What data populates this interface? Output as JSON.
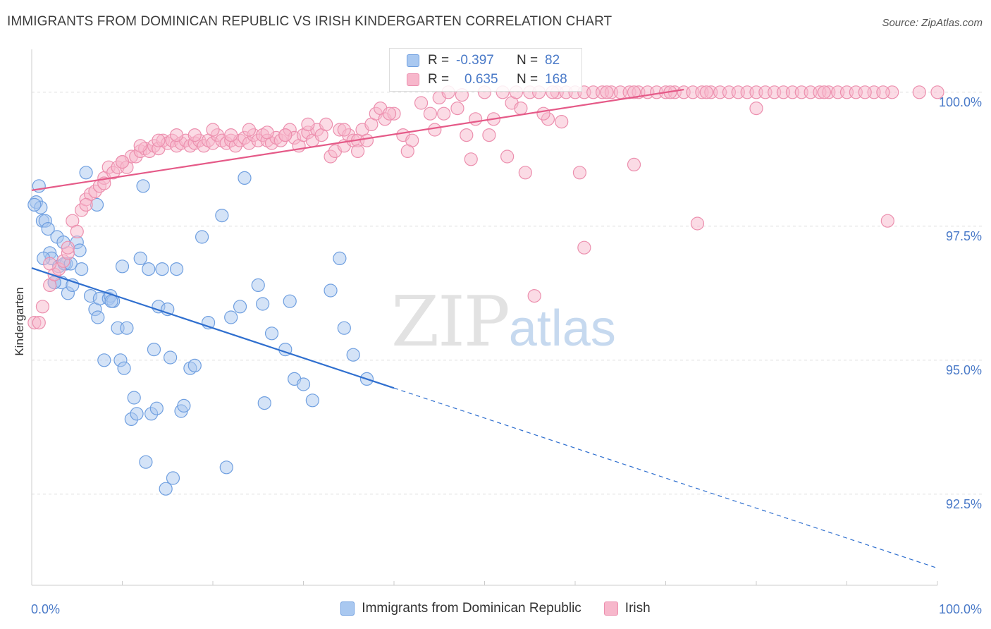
{
  "header": {
    "title": "IMMIGRANTS FROM DOMINICAN REPUBLIC VS IRISH KINDERGARTEN CORRELATION CHART",
    "source": "Source: ZipAtlas.com"
  },
  "watermark": {
    "zip": "ZIP",
    "atlas": "atlas"
  },
  "legend_top": {
    "rows": [
      {
        "r_label": "R =",
        "r_value": "-0.397",
        "n_label": "N =",
        "n_value": "82",
        "color": "#a9c8f0"
      },
      {
        "r_label": "R =",
        "r_value": "0.635",
        "n_label": "N =",
        "n_value": "168",
        "color": "#f7b7cb"
      }
    ]
  },
  "legend_bottom": {
    "items": [
      {
        "label": "Immigrants from Dominican Republic",
        "color": "#a9c8f0"
      },
      {
        "label": "Irish",
        "color": "#f7b7cb"
      }
    ]
  },
  "chart_data": {
    "type": "scatter",
    "title": "IMMIGRANTS FROM DOMINICAN REPUBLIC VS IRISH KINDERGARTEN CORRELATION CHART",
    "xlabel": "",
    "ylabel": "Kindergarten",
    "xlim": [
      0,
      100
    ],
    "ylim": [
      90.8,
      100.8
    ],
    "x_tick_labels": [
      "0.0%",
      "100.0%"
    ],
    "y_ticks": [
      92.5,
      95.0,
      97.5,
      100.0
    ],
    "y_tick_labels": [
      "92.5%",
      "95.0%",
      "97.5%",
      "100.0%"
    ],
    "grid": true,
    "legend_position": "top-center",
    "series": [
      {
        "name": "Immigrants from Dominican Republic",
        "color": "#a9c8f0",
        "stroke": "#6f9fe0",
        "line_color": "#2f6fcf",
        "R": -0.397,
        "N": 82,
        "trend": {
          "x0": 0,
          "y0": 96.72,
          "x1": 40,
          "y1": 94.48,
          "dash_to_x": 100,
          "dash_to_y": 91.12
        },
        "points": [
          [
            0.5,
            97.95
          ],
          [
            0.8,
            98.25
          ],
          [
            1.0,
            97.85
          ],
          [
            1.2,
            97.6
          ],
          [
            1.5,
            97.6
          ],
          [
            1.8,
            97.45
          ],
          [
            2.0,
            97.0
          ],
          [
            2.2,
            96.9
          ],
          [
            2.5,
            96.45
          ],
          [
            2.8,
            97.3
          ],
          [
            3.0,
            96.75
          ],
          [
            3.3,
            96.45
          ],
          [
            3.5,
            97.2
          ],
          [
            3.8,
            96.8
          ],
          [
            4.0,
            96.25
          ],
          [
            4.5,
            96.4
          ],
          [
            5.0,
            97.2
          ],
          [
            5.3,
            97.05
          ],
          [
            5.5,
            96.7
          ],
          [
            6.5,
            96.2
          ],
          [
            7.0,
            95.95
          ],
          [
            7.3,
            95.8
          ],
          [
            7.5,
            96.15
          ],
          [
            8.0,
            95.0
          ],
          [
            8.5,
            96.15
          ],
          [
            8.7,
            96.2
          ],
          [
            9.0,
            96.1
          ],
          [
            9.5,
            95.6
          ],
          [
            9.8,
            95.0
          ],
          [
            10.0,
            96.75
          ],
          [
            10.2,
            94.85
          ],
          [
            10.5,
            95.6
          ],
          [
            11.0,
            93.9
          ],
          [
            11.3,
            94.3
          ],
          [
            11.6,
            94.0
          ],
          [
            12.0,
            96.9
          ],
          [
            12.3,
            98.25
          ],
          [
            12.6,
            93.1
          ],
          [
            12.9,
            96.7
          ],
          [
            13.2,
            94.0
          ],
          [
            13.5,
            95.2
          ],
          [
            13.8,
            94.1
          ],
          [
            14.0,
            96.0
          ],
          [
            14.4,
            96.7
          ],
          [
            15.0,
            95.95
          ],
          [
            14.8,
            92.6
          ],
          [
            15.3,
            95.05
          ],
          [
            15.6,
            92.8
          ],
          [
            16.0,
            96.7
          ],
          [
            16.5,
            94.05
          ],
          [
            16.8,
            94.15
          ],
          [
            17.5,
            94.85
          ],
          [
            18.0,
            94.9
          ],
          [
            18.8,
            97.3
          ],
          [
            19.5,
            95.7
          ],
          [
            21.0,
            97.7
          ],
          [
            21.5,
            93.0
          ],
          [
            22.0,
            95.8
          ],
          [
            23.0,
            96.0
          ],
          [
            23.5,
            98.4
          ],
          [
            25.0,
            96.4
          ],
          [
            25.5,
            96.05
          ],
          [
            25.7,
            94.2
          ],
          [
            26.5,
            95.5
          ],
          [
            28.0,
            95.2
          ],
          [
            28.5,
            96.1
          ],
          [
            29.0,
            94.65
          ],
          [
            30.0,
            94.55
          ],
          [
            31.0,
            94.25
          ],
          [
            33.0,
            96.3
          ],
          [
            34.0,
            96.9
          ],
          [
            34.5,
            95.6
          ],
          [
            35.5,
            95.1
          ],
          [
            37.0,
            94.65
          ],
          [
            2.5,
            96.45
          ],
          [
            3.6,
            96.8
          ],
          [
            6.0,
            98.5
          ],
          [
            7.2,
            97.9
          ],
          [
            4.3,
            96.8
          ],
          [
            0.3,
            97.9
          ],
          [
            1.3,
            96.9
          ],
          [
            8.8,
            96.1
          ]
        ]
      },
      {
        "name": "Irish",
        "color": "#f7b7cb",
        "stroke": "#ec8fae",
        "line_color": "#e55a88",
        "R": 0.635,
        "N": 168,
        "trend": {
          "x0": 0,
          "y0": 98.17,
          "x1": 72,
          "y1": 100.05
        },
        "points": [
          [
            0.3,
            95.7
          ],
          [
            0.8,
            95.7
          ],
          [
            1.2,
            96.0
          ],
          [
            2.0,
            96.4
          ],
          [
            2.5,
            96.6
          ],
          [
            3.0,
            96.7
          ],
          [
            3.5,
            96.85
          ],
          [
            4.0,
            97.0
          ],
          [
            4.5,
            97.6
          ],
          [
            5.0,
            97.4
          ],
          [
            5.5,
            97.8
          ],
          [
            6.0,
            98.0
          ],
          [
            6.5,
            98.1
          ],
          [
            7.0,
            98.15
          ],
          [
            7.5,
            98.25
          ],
          [
            8.0,
            98.4
          ],
          [
            8.5,
            98.6
          ],
          [
            9.0,
            98.5
          ],
          [
            9.5,
            98.6
          ],
          [
            10.0,
            98.7
          ],
          [
            10.5,
            98.6
          ],
          [
            11.0,
            98.8
          ],
          [
            11.5,
            98.8
          ],
          [
            12.0,
            98.9
          ],
          [
            12.5,
            98.95
          ],
          [
            13.0,
            98.9
          ],
          [
            13.5,
            99.0
          ],
          [
            14.0,
            98.95
          ],
          [
            14.5,
            99.1
          ],
          [
            15.0,
            99.05
          ],
          [
            15.5,
            99.1
          ],
          [
            16.0,
            99.0
          ],
          [
            16.5,
            99.05
          ],
          [
            17.0,
            99.1
          ],
          [
            17.5,
            99.0
          ],
          [
            18.0,
            99.05
          ],
          [
            18.5,
            99.1
          ],
          [
            19.0,
            99.0
          ],
          [
            19.5,
            99.1
          ],
          [
            20.0,
            99.05
          ],
          [
            20.5,
            99.2
          ],
          [
            21.0,
            99.1
          ],
          [
            21.5,
            99.05
          ],
          [
            22.0,
            99.1
          ],
          [
            22.5,
            99.0
          ],
          [
            23.0,
            99.1
          ],
          [
            23.5,
            99.15
          ],
          [
            24.0,
            99.05
          ],
          [
            24.5,
            99.2
          ],
          [
            25.0,
            99.1
          ],
          [
            25.5,
            99.2
          ],
          [
            26.0,
            99.1
          ],
          [
            26.5,
            99.05
          ],
          [
            27.0,
            99.15
          ],
          [
            27.5,
            99.1
          ],
          [
            28.0,
            99.2
          ],
          [
            28.5,
            99.3
          ],
          [
            29.0,
            99.15
          ],
          [
            29.5,
            99.0
          ],
          [
            30.0,
            99.2
          ],
          [
            30.5,
            99.25
          ],
          [
            31.0,
            99.1
          ],
          [
            31.5,
            99.3
          ],
          [
            32.0,
            99.2
          ],
          [
            32.5,
            99.4
          ],
          [
            33.0,
            98.8
          ],
          [
            33.5,
            98.9
          ],
          [
            34.0,
            99.3
          ],
          [
            34.5,
            99.0
          ],
          [
            35.0,
            99.2
          ],
          [
            35.5,
            99.1
          ],
          [
            36.0,
            99.1
          ],
          [
            36.5,
            99.3
          ],
          [
            37.0,
            99.1
          ],
          [
            37.5,
            99.4
          ],
          [
            38.0,
            99.6
          ],
          [
            38.5,
            99.7
          ],
          [
            39.0,
            99.5
          ],
          [
            40.0,
            99.6
          ],
          [
            41.0,
            99.2
          ],
          [
            42.0,
            99.1
          ],
          [
            43.0,
            99.8
          ],
          [
            44.0,
            99.6
          ],
          [
            45.0,
            99.9
          ],
          [
            46.0,
            100.0
          ],
          [
            47.0,
            99.7
          ],
          [
            48.0,
            99.2
          ],
          [
            49.0,
            99.5
          ],
          [
            50.0,
            100.0
          ],
          [
            51.0,
            99.5
          ],
          [
            52.0,
            100.0
          ],
          [
            53.0,
            99.8
          ],
          [
            54.0,
            99.7
          ],
          [
            55.0,
            100.0
          ],
          [
            56.0,
            100.0
          ],
          [
            57.0,
            99.5
          ],
          [
            58.0,
            100.0
          ],
          [
            59.0,
            100.0
          ],
          [
            60.0,
            100.0
          ],
          [
            61.0,
            100.0
          ],
          [
            62.0,
            100.0
          ],
          [
            63.0,
            100.0
          ],
          [
            64.0,
            100.0
          ],
          [
            65.0,
            100.0
          ],
          [
            66.0,
            100.0
          ],
          [
            67.0,
            100.0
          ],
          [
            68.0,
            100.0
          ],
          [
            69.0,
            100.0
          ],
          [
            70.0,
            100.0
          ],
          [
            71.0,
            100.0
          ],
          [
            72.0,
            100.0
          ],
          [
            73.0,
            100.0
          ],
          [
            74.0,
            100.0
          ],
          [
            75.0,
            100.0
          ],
          [
            76.0,
            100.0
          ],
          [
            77.0,
            100.0
          ],
          [
            78.0,
            100.0
          ],
          [
            79.0,
            100.0
          ],
          [
            80.0,
            100.0
          ],
          [
            81.0,
            100.0
          ],
          [
            82.0,
            100.0
          ],
          [
            83.0,
            100.0
          ],
          [
            84.0,
            100.0
          ],
          [
            85.0,
            100.0
          ],
          [
            86.0,
            100.0
          ],
          [
            87.0,
            100.0
          ],
          [
            88.0,
            100.0
          ],
          [
            89.0,
            100.0
          ],
          [
            90.0,
            100.0
          ],
          [
            91.0,
            100.0
          ],
          [
            93.0,
            100.0
          ],
          [
            95.0,
            100.0
          ],
          [
            100.0,
            100.0
          ],
          [
            80.0,
            99.7
          ],
          [
            98.0,
            100.0
          ],
          [
            94.0,
            100.0
          ],
          [
            92.0,
            100.0
          ],
          [
            87.5,
            100.0
          ],
          [
            74.5,
            100.0
          ],
          [
            63.5,
            100.0
          ],
          [
            66.5,
            100.0
          ],
          [
            70.5,
            100.0
          ],
          [
            57.5,
            100.0
          ],
          [
            53.5,
            100.0
          ],
          [
            47.5,
            99.95
          ],
          [
            45.5,
            99.6
          ],
          [
            44.5,
            99.3
          ],
          [
            48.5,
            98.75
          ],
          [
            50.5,
            99.2
          ],
          [
            52.5,
            98.8
          ],
          [
            54.5,
            98.5
          ],
          [
            56.5,
            99.6
          ],
          [
            58.5,
            99.45
          ],
          [
            60.5,
            98.5
          ],
          [
            66.5,
            98.65
          ],
          [
            73.5,
            97.55
          ],
          [
            94.5,
            97.6
          ],
          [
            61.0,
            97.1
          ],
          [
            55.5,
            96.2
          ],
          [
            30.5,
            99.4
          ],
          [
            34.5,
            99.3
          ],
          [
            41.5,
            98.9
          ],
          [
            39.5,
            99.6
          ],
          [
            36.0,
            98.9
          ],
          [
            28.0,
            99.2
          ],
          [
            26.0,
            99.25
          ],
          [
            24.0,
            99.3
          ],
          [
            22.0,
            99.2
          ],
          [
            20.0,
            99.3
          ],
          [
            18.0,
            99.2
          ],
          [
            16.0,
            99.2
          ],
          [
            14.0,
            99.1
          ],
          [
            12.0,
            99.0
          ],
          [
            10.0,
            98.7
          ],
          [
            8.0,
            98.3
          ],
          [
            6.0,
            97.9
          ],
          [
            4.0,
            97.1
          ],
          [
            2.0,
            96.8
          ]
        ]
      }
    ]
  }
}
